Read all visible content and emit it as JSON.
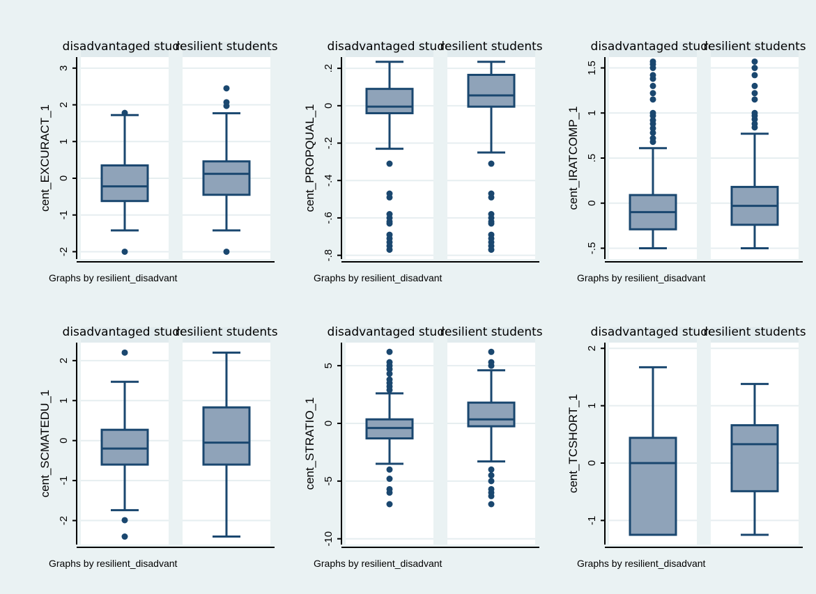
{
  "colors": {
    "background": "#eaf2f3",
    "plot_area": "#ffffff",
    "strip": "#e1ebee",
    "grid": "#e6eef0",
    "box_fill": "#8fa3b9",
    "box_line": "#1a476f",
    "marker": "#1a476f",
    "axis": "#000000"
  },
  "chart_data": [
    {
      "type": "box",
      "panels": [
        "disadvantaged stude",
        "resilient students"
      ],
      "ylabel": "cent_EXCURACT_1",
      "note": "Graphs by resilient_disadvant",
      "yticks": [
        -2,
        -1,
        0,
        1,
        2,
        3
      ],
      "ytick_labels": [
        "-2",
        "-1",
        "0",
        "1",
        "2",
        "3"
      ],
      "ylim": [
        -2.2,
        3.3
      ],
      "boxes": [
        {
          "q1": -0.62,
          "median": -0.22,
          "q3": 0.35,
          "whisker_low": -1.42,
          "whisker_high": 1.72,
          "outliers": [
            -2.0,
            1.78
          ]
        },
        {
          "q1": -0.45,
          "median": 0.12,
          "q3": 0.46,
          "whisker_low": -1.42,
          "whisker_high": 1.77,
          "outliers": [
            -2.0,
            1.97,
            2.07,
            2.45
          ]
        }
      ]
    },
    {
      "type": "box",
      "panels": [
        "disadvantaged stude",
        "resilient students"
      ],
      "ylabel": "cent_PROPQUAL_1",
      "note": "Graphs by resilient_disadvant",
      "yticks": [
        -0.8,
        -0.6,
        -0.4,
        -0.2,
        0,
        0.2
      ],
      "ytick_labels": [
        "-.8",
        "-.6",
        "-.4",
        "-.2",
        "0",
        ".2"
      ],
      "ylim": [
        -0.82,
        0.26
      ],
      "boxes": [
        {
          "q1": -0.04,
          "median": -0.005,
          "q3": 0.09,
          "whisker_low": -0.23,
          "whisker_high": 0.235,
          "outliers": [
            -0.31,
            -0.47,
            -0.49,
            -0.58,
            -0.6,
            -0.62,
            -0.63,
            -0.69,
            -0.71,
            -0.73,
            -0.75,
            -0.77
          ]
        },
        {
          "q1": -0.005,
          "median": 0.055,
          "q3": 0.165,
          "whisker_low": -0.25,
          "whisker_high": 0.235,
          "outliers": [
            -0.31,
            -0.47,
            -0.49,
            -0.58,
            -0.6,
            -0.62,
            -0.63,
            -0.69,
            -0.71,
            -0.73,
            -0.75,
            -0.77
          ]
        }
      ]
    },
    {
      "type": "box",
      "panels": [
        "disadvantaged stude",
        "resilient students"
      ],
      "ylabel": "cent_IRATCOMP_1",
      "note": "Graphs by resilient_disadvant",
      "yticks": [
        -0.5,
        0,
        0.5,
        1,
        1.5
      ],
      "ytick_labels": [
        "-.5",
        "0",
        ".5",
        "1",
        "1.5"
      ],
      "ylim": [
        -0.62,
        1.62
      ],
      "boxes": [
        {
          "q1": -0.29,
          "median": -0.1,
          "q3": 0.09,
          "whisker_low": -0.5,
          "whisker_high": 0.61,
          "outliers": [
            0.68,
            0.72,
            0.78,
            0.83,
            0.88,
            0.92,
            0.97,
            1.0,
            1.15,
            1.22,
            1.3,
            1.38,
            1.42,
            1.5,
            1.54,
            1.57
          ]
        },
        {
          "q1": -0.24,
          "median": -0.03,
          "q3": 0.18,
          "whisker_low": -0.5,
          "whisker_high": 0.77,
          "outliers": [
            0.84,
            0.88,
            0.93,
            0.97,
            1.0,
            1.15,
            1.22,
            1.3,
            1.42,
            1.5,
            1.57
          ]
        }
      ]
    },
    {
      "type": "box",
      "panels": [
        "disadvantaged stude",
        "resilient students"
      ],
      "ylabel": "cent_SCMATEDU_1",
      "note": "Graphs by resilient_disadvant",
      "yticks": [
        -2,
        -1,
        0,
        1,
        2
      ],
      "ytick_labels": [
        "-2",
        "-1",
        "0",
        "1",
        "2"
      ],
      "ylim": [
        -2.6,
        2.45
      ],
      "boxes": [
        {
          "q1": -0.6,
          "median": -0.2,
          "q3": 0.27,
          "whisker_low": -1.74,
          "whisker_high": 1.47,
          "outliers": [
            -2.4,
            -1.99,
            2.2
          ]
        },
        {
          "q1": -0.6,
          "median": -0.05,
          "q3": 0.83,
          "whisker_low": -2.4,
          "whisker_high": 2.2,
          "outliers": []
        }
      ]
    },
    {
      "type": "box",
      "panels": [
        "disadvantaged stude",
        "resilient students"
      ],
      "ylabel": "cent_STRATIO_1",
      "note": "Graphs by resilient_disadvant",
      "yticks": [
        -10,
        -5,
        0,
        5
      ],
      "ytick_labels": [
        "-10",
        "-5",
        "0",
        "5"
      ],
      "ylim": [
        -10.5,
        7.0
      ],
      "boxes": [
        {
          "q1": -1.3,
          "median": -0.4,
          "q3": 0.35,
          "whisker_low": -3.5,
          "whisker_high": 2.6,
          "outliers": [
            -7.0,
            -6.0,
            -5.7,
            -4.8,
            -4.0,
            2.9,
            3.2,
            3.5,
            3.8,
            4.3,
            4.7,
            5.0,
            5.3,
            6.2
          ]
        },
        {
          "q1": -0.25,
          "median": 0.35,
          "q3": 1.8,
          "whisker_low": -3.3,
          "whisker_high": 4.6,
          "outliers": [
            -7.0,
            -6.3,
            -6.0,
            -5.7,
            -5.0,
            -4.5,
            -4.0,
            5.0,
            5.3,
            6.2
          ]
        }
      ]
    },
    {
      "type": "box",
      "panels": [
        "disadvantaged stude",
        "resilient students"
      ],
      "ylabel": "cent_TCSHORT_1",
      "note": "Graphs by resilient_disadvant",
      "yticks": [
        -1,
        0,
        1,
        2
      ],
      "ytick_labels": [
        "-1",
        "0",
        "1",
        "2"
      ],
      "ylim": [
        -1.42,
        2.1
      ],
      "boxes": [
        {
          "q1": -1.25,
          "median": 0.0,
          "q3": 0.44,
          "whisker_low": -1.25,
          "whisker_high": 1.67,
          "outliers": []
        },
        {
          "q1": -0.49,
          "median": 0.33,
          "q3": 0.66,
          "whisker_low": -1.25,
          "whisker_high": 1.38,
          "outliers": []
        }
      ]
    }
  ]
}
